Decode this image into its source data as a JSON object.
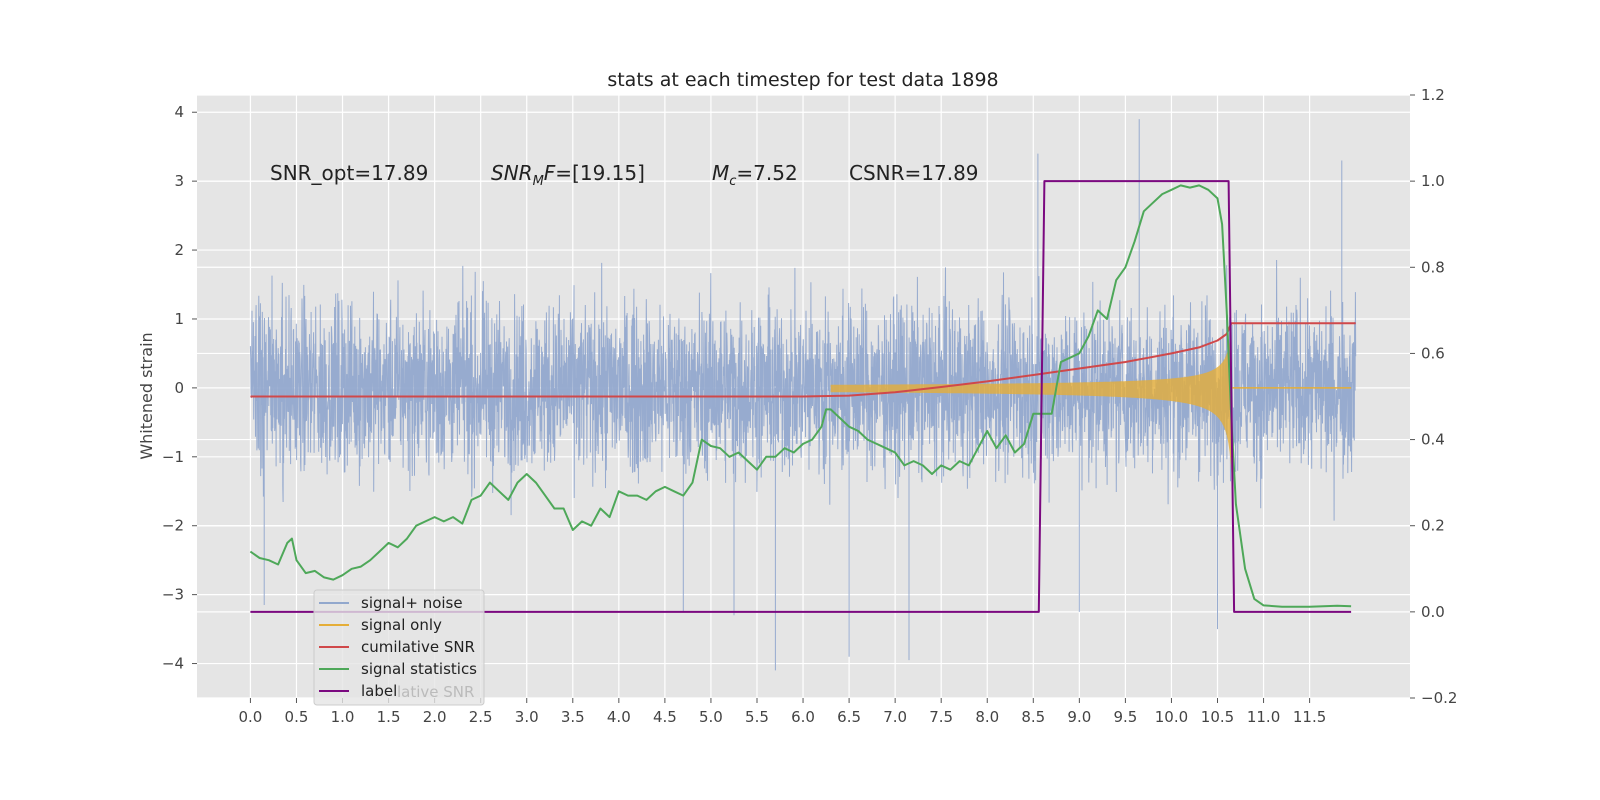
{
  "chart_data": {
    "type": "line",
    "title": "stats at each timestep for test data 1898",
    "xlabel": "",
    "ylabel": "Whitened strain",
    "y2label": "",
    "xlim": [
      -0.58,
      12.59
    ],
    "ylim": [
      -4.5,
      4.25
    ],
    "y2lim": [
      -0.2,
      1.2
    ],
    "grid": true,
    "legend_position": "lower-left",
    "x_ticks": [
      "0.0",
      "0.5",
      "1.0",
      "1.5",
      "2.0",
      "2.5",
      "3.0",
      "3.5",
      "4.0",
      "4.5",
      "5.0",
      "5.5",
      "6.0",
      "6.5",
      "7.0",
      "7.5",
      "8.0",
      "8.5",
      "9.0",
      "9.5",
      "10.0",
      "10.5",
      "11.0",
      "11.5"
    ],
    "y_ticks": [
      "4",
      "3",
      "2",
      "1",
      "0",
      "−1",
      "−2",
      "−3",
      "−4"
    ],
    "y2_ticks": [
      "1.2",
      "1.0",
      "0.8",
      "0.6",
      "0.4",
      "0.2",
      "0.0",
      "−0.2"
    ],
    "annotations": {
      "snr_opt": "SNR_opt=17.89",
      "snr_mf_prefix": "SNR",
      "snr_mf_sub": "M",
      "snr_mf_suffix": "F=[19.15]",
      "mc_prefix": "M",
      "mc_sub": "c",
      "mc_suffix": "=7.52",
      "csnr": "CSNR=17.89"
    },
    "noise": {
      "x_range": [
        0.0,
        12.0
      ],
      "band": [
        -2.2,
        2.25
      ],
      "extreme_spikes": [
        {
          "x": 9.65,
          "y": 3.9
        },
        {
          "x": 8.55,
          "y": 3.4
        },
        {
          "x": 11.85,
          "y": 3.3
        },
        {
          "x": 5.7,
          "y": -4.1
        },
        {
          "x": 6.5,
          "y": -3.9
        },
        {
          "x": 7.15,
          "y": -3.95
        },
        {
          "x": 10.5,
          "y": -3.5
        },
        {
          "x": 5.25,
          "y": -3.3
        },
        {
          "x": 9.0,
          "y": -3.25
        },
        {
          "x": 0.15,
          "y": -3.15
        },
        {
          "x": 4.7,
          "y": -3.25
        }
      ]
    },
    "signal_only": {
      "start": 6.3,
      "end": 10.65,
      "peak_amplitude": 1.3
    },
    "series": [
      {
        "name": "cumilative SNR",
        "axis": "right",
        "points": [
          [
            0.0,
            0.5
          ],
          [
            6.0,
            0.5
          ],
          [
            6.5,
            0.502
          ],
          [
            7.0,
            0.51
          ],
          [
            7.5,
            0.522
          ],
          [
            8.0,
            0.535
          ],
          [
            8.5,
            0.55
          ],
          [
            9.0,
            0.565
          ],
          [
            9.5,
            0.58
          ],
          [
            10.0,
            0.6
          ],
          [
            10.3,
            0.614
          ],
          [
            10.5,
            0.63
          ],
          [
            10.6,
            0.645
          ],
          [
            10.65,
            0.67
          ],
          [
            10.66,
            0.67
          ],
          [
            12.0,
            0.67
          ]
        ]
      },
      {
        "name": "signal statistics",
        "axis": "right",
        "points": [
          [
            0.0,
            0.14
          ],
          [
            0.1,
            0.125
          ],
          [
            0.2,
            0.12
          ],
          [
            0.3,
            0.11
          ],
          [
            0.4,
            0.16
          ],
          [
            0.45,
            0.17
          ],
          [
            0.5,
            0.12
          ],
          [
            0.6,
            0.09
          ],
          [
            0.7,
            0.095
          ],
          [
            0.8,
            0.08
          ],
          [
            0.9,
            0.075
          ],
          [
            1.0,
            0.085
          ],
          [
            1.1,
            0.1
          ],
          [
            1.2,
            0.105
          ],
          [
            1.3,
            0.12
          ],
          [
            1.4,
            0.14
          ],
          [
            1.5,
            0.16
          ],
          [
            1.6,
            0.15
          ],
          [
            1.7,
            0.17
          ],
          [
            1.8,
            0.2
          ],
          [
            1.9,
            0.21
          ],
          [
            2.0,
            0.22
          ],
          [
            2.1,
            0.21
          ],
          [
            2.2,
            0.22
          ],
          [
            2.3,
            0.205
          ],
          [
            2.4,
            0.26
          ],
          [
            2.5,
            0.27
          ],
          [
            2.6,
            0.3
          ],
          [
            2.7,
            0.28
          ],
          [
            2.8,
            0.26
          ],
          [
            2.9,
            0.3
          ],
          [
            3.0,
            0.32
          ],
          [
            3.1,
            0.3
          ],
          [
            3.2,
            0.27
          ],
          [
            3.3,
            0.24
          ],
          [
            3.4,
            0.24
          ],
          [
            3.5,
            0.19
          ],
          [
            3.6,
            0.21
          ],
          [
            3.7,
            0.2
          ],
          [
            3.8,
            0.24
          ],
          [
            3.9,
            0.22
          ],
          [
            4.0,
            0.28
          ],
          [
            4.1,
            0.27
          ],
          [
            4.2,
            0.27
          ],
          [
            4.3,
            0.26
          ],
          [
            4.4,
            0.28
          ],
          [
            4.5,
            0.29
          ],
          [
            4.6,
            0.28
          ],
          [
            4.7,
            0.27
          ],
          [
            4.8,
            0.3
          ],
          [
            4.9,
            0.4
          ],
          [
            5.0,
            0.385
          ],
          [
            5.1,
            0.38
          ],
          [
            5.2,
            0.36
          ],
          [
            5.3,
            0.37
          ],
          [
            5.4,
            0.35
          ],
          [
            5.5,
            0.33
          ],
          [
            5.6,
            0.36
          ],
          [
            5.7,
            0.36
          ],
          [
            5.8,
            0.38
          ],
          [
            5.9,
            0.37
          ],
          [
            6.0,
            0.39
          ],
          [
            6.1,
            0.4
          ],
          [
            6.2,
            0.43
          ],
          [
            6.25,
            0.47
          ],
          [
            6.3,
            0.47
          ],
          [
            6.4,
            0.45
          ],
          [
            6.5,
            0.43
          ],
          [
            6.6,
            0.42
          ],
          [
            6.7,
            0.4
          ],
          [
            6.8,
            0.39
          ],
          [
            6.9,
            0.38
          ],
          [
            7.0,
            0.37
          ],
          [
            7.1,
            0.34
          ],
          [
            7.2,
            0.35
          ],
          [
            7.3,
            0.34
          ],
          [
            7.4,
            0.32
          ],
          [
            7.5,
            0.34
          ],
          [
            7.6,
            0.33
          ],
          [
            7.7,
            0.35
          ],
          [
            7.8,
            0.34
          ],
          [
            7.9,
            0.38
          ],
          [
            8.0,
            0.42
          ],
          [
            8.1,
            0.38
          ],
          [
            8.2,
            0.41
          ],
          [
            8.3,
            0.37
          ],
          [
            8.4,
            0.39
          ],
          [
            8.5,
            0.46
          ],
          [
            8.6,
            0.46
          ],
          [
            8.7,
            0.46
          ],
          [
            8.8,
            0.58
          ],
          [
            8.9,
            0.59
          ],
          [
            9.0,
            0.6
          ],
          [
            9.1,
            0.64
          ],
          [
            9.2,
            0.7
          ],
          [
            9.3,
            0.68
          ],
          [
            9.4,
            0.77
          ],
          [
            9.5,
            0.8
          ],
          [
            9.6,
            0.86
          ],
          [
            9.7,
            0.93
          ],
          [
            9.8,
            0.95
          ],
          [
            9.9,
            0.97
          ],
          [
            10.0,
            0.98
          ],
          [
            10.1,
            0.99
          ],
          [
            10.2,
            0.985
          ],
          [
            10.3,
            0.99
          ],
          [
            10.4,
            0.98
          ],
          [
            10.5,
            0.96
          ],
          [
            10.55,
            0.9
          ],
          [
            10.6,
            0.7
          ],
          [
            10.65,
            0.45
          ],
          [
            10.7,
            0.25
          ],
          [
            10.8,
            0.1
          ],
          [
            10.9,
            0.03
          ],
          [
            11.0,
            0.015
          ],
          [
            11.2,
            0.012
          ],
          [
            11.5,
            0.012
          ],
          [
            11.8,
            0.014
          ],
          [
            11.95,
            0.013
          ]
        ]
      },
      {
        "name": "label",
        "axis": "right",
        "points": [
          [
            0.0,
            0.0
          ],
          [
            8.56,
            0.0
          ],
          [
            8.62,
            1.0
          ],
          [
            10.62,
            1.0
          ],
          [
            10.68,
            0.0
          ],
          [
            11.95,
            0.0
          ]
        ]
      }
    ],
    "legend": [
      "signal+ noise",
      "signal only",
      "cumilative SNR",
      "signal statistics",
      "label"
    ],
    "legend_overlap_text": "lative SNR",
    "colors": {
      "noise": "#92a8cd",
      "signal": "#e5ae38",
      "cumsnr": "#d0484a",
      "stats": "#4ea859",
      "label": "#7b0980",
      "axes_bg": "#e5e5e5"
    }
  }
}
